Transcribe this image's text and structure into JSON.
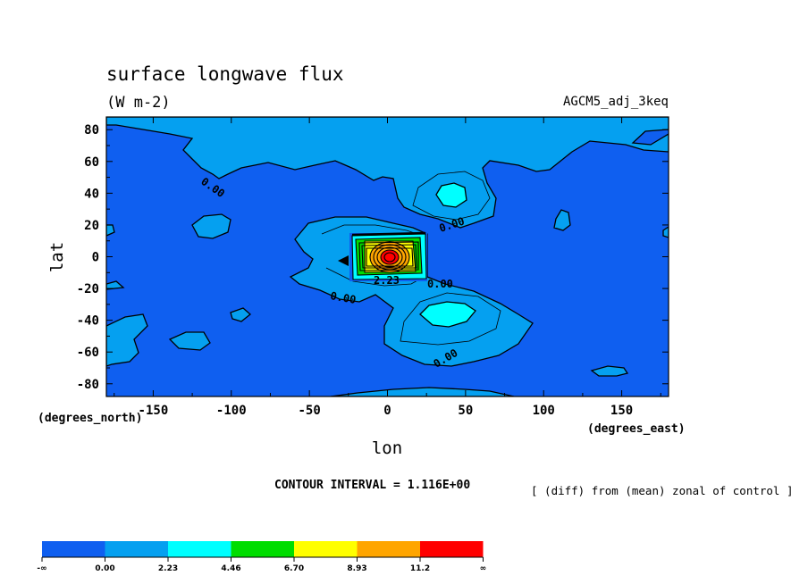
{
  "chart_data": {
    "type": "contour",
    "title": "surface longwave flux",
    "units": "(W m-2)",
    "dataset": "AGCM5_adj_3keq",
    "xlabel": "lon",
    "ylabel": "lat",
    "x_units": "(degrees_east)",
    "y_units": "(degrees_north)",
    "xlim": [
      -180,
      180
    ],
    "ylim": [
      -88,
      88
    ],
    "x_ticks": [
      -150,
      -100,
      -50,
      0,
      50,
      100,
      150
    ],
    "x_tick_labels": [
      "-150",
      "-100",
      "-50",
      "0",
      "50",
      "100",
      "150"
    ],
    "y_ticks": [
      80,
      60,
      40,
      20,
      0,
      -20,
      -40,
      -60,
      -80
    ],
    "y_tick_labels": [
      "80",
      "60",
      "40",
      "20",
      "0",
      "-20",
      "-40",
      "-60",
      "-80"
    ],
    "contour_interval": "CONTOUR INTERVAL = 1.116E+00",
    "note": "[ (diff) from (mean) zonal of control ]",
    "contour_labels": [
      "0.00",
      "0.00",
      "0.00",
      "0.00",
      "0.00",
      "2.23"
    ],
    "levels": [
      {
        "label": "-∞",
        "color": "#0f5ff0"
      },
      {
        "label": "0.00",
        "color": "#05a0f0"
      },
      {
        "label": "2.23",
        "color": "#00ffff"
      },
      {
        "label": "4.46",
        "color": "#00dd00"
      },
      {
        "label": "6.70",
        "color": "#ffff00"
      },
      {
        "label": "8.93",
        "color": "#ffa500"
      },
      {
        "label": "11.2",
        "color": "#ff0000"
      },
      {
        "label": "∞",
        "color": ""
      }
    ],
    "anomaly_center": {
      "lon": 0,
      "lat": 0
    },
    "anomaly_extent_lon": [
      -22,
      22
    ],
    "anomaly_extent_lat": [
      -14,
      14
    ]
  }
}
